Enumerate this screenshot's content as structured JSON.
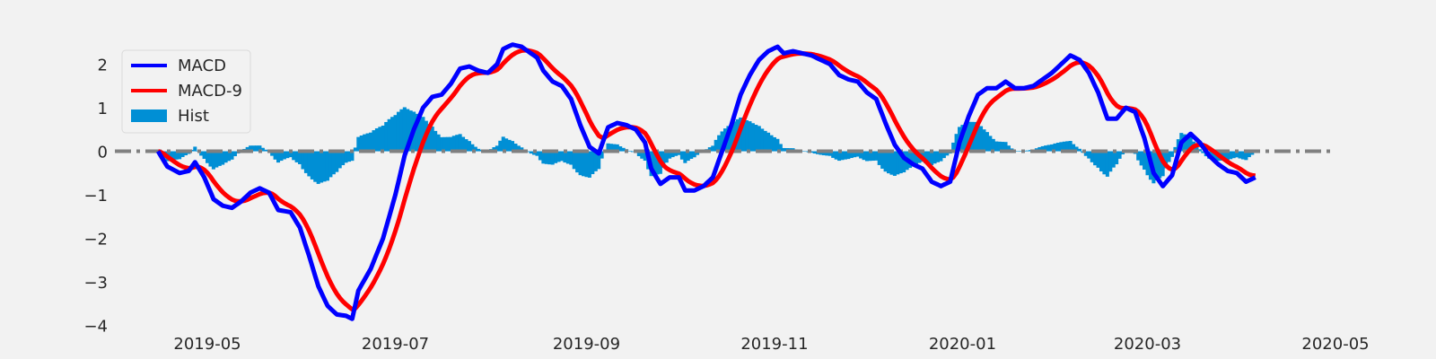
{
  "chart_data": {
    "type": "line",
    "title": "",
    "xlabel": "",
    "ylabel": "",
    "xlim": [
      "2019-04-01",
      "2020-05-01"
    ],
    "ylim": [
      -4.05,
      2.65
    ],
    "grid": false,
    "legend": {
      "placement": "upper-left",
      "entries": [
        "MACD",
        "MACD-9",
        "Hist"
      ]
    },
    "x_ticks": [
      "2019-05",
      "2019-07",
      "2019-09",
      "2019-11",
      "2020-01",
      "2020-03",
      "2020-05"
    ],
    "x_tick_dates": [
      "2019-05-01",
      "2019-07-01",
      "2019-09-01",
      "2019-11-01",
      "2020-01-01",
      "2020-03-01",
      "2020-05-01"
    ],
    "y_ticks": [
      2,
      1,
      0,
      -1,
      -2,
      -3,
      -4
    ],
    "y_tick_labels": [
      "2",
      "1",
      "0",
      "−1",
      "−2",
      "−3",
      "−4"
    ],
    "reference_line": {
      "y": 0,
      "style": "dash-dot",
      "color": "#808080"
    },
    "colors": {
      "macd": "#0000ff",
      "signal": "#ff0000",
      "hist": "#008fd5",
      "background": "#f2f2f2"
    },
    "series": [
      {
        "name": "MACD",
        "color": "#0000ff",
        "points": [
          [
            "2019-04-15",
            0.0
          ],
          [
            "2019-04-18",
            -0.35
          ],
          [
            "2019-04-22",
            -0.5
          ],
          [
            "2019-04-25",
            -0.45
          ],
          [
            "2019-04-27",
            -0.25
          ],
          [
            "2019-04-30",
            -0.6
          ],
          [
            "2019-05-03",
            -1.1
          ],
          [
            "2019-05-06",
            -1.25
          ],
          [
            "2019-05-09",
            -1.3
          ],
          [
            "2019-05-12",
            -1.15
          ],
          [
            "2019-05-15",
            -0.95
          ],
          [
            "2019-05-18",
            -0.85
          ],
          [
            "2019-05-21",
            -0.95
          ],
          [
            "2019-05-24",
            -1.35
          ],
          [
            "2019-05-28",
            -1.4
          ],
          [
            "2019-05-31",
            -1.75
          ],
          [
            "2019-06-03",
            -2.4
          ],
          [
            "2019-06-06",
            -3.1
          ],
          [
            "2019-06-09",
            -3.55
          ],
          [
            "2019-06-12",
            -3.75
          ],
          [
            "2019-06-15",
            -3.78
          ],
          [
            "2019-06-17",
            -3.85
          ],
          [
            "2019-06-19",
            -3.2
          ],
          [
            "2019-06-23",
            -2.7
          ],
          [
            "2019-06-27",
            -2.0
          ],
          [
            "2019-07-01",
            -1.0
          ],
          [
            "2019-07-04",
            -0.1
          ],
          [
            "2019-07-07",
            0.5
          ],
          [
            "2019-07-10",
            1.0
          ],
          [
            "2019-07-13",
            1.25
          ],
          [
            "2019-07-16",
            1.3
          ],
          [
            "2019-07-19",
            1.55
          ],
          [
            "2019-07-22",
            1.9
          ],
          [
            "2019-07-25",
            1.95
          ],
          [
            "2019-07-28",
            1.85
          ],
          [
            "2019-07-31",
            1.8
          ],
          [
            "2019-08-03",
            2.0
          ],
          [
            "2019-08-05",
            2.35
          ],
          [
            "2019-08-08",
            2.45
          ],
          [
            "2019-08-11",
            2.4
          ],
          [
            "2019-08-13",
            2.3
          ],
          [
            "2019-08-16",
            2.15
          ],
          [
            "2019-08-18",
            1.85
          ],
          [
            "2019-08-21",
            1.6
          ],
          [
            "2019-08-24",
            1.5
          ],
          [
            "2019-08-27",
            1.2
          ],
          [
            "2019-08-30",
            0.6
          ],
          [
            "2019-09-02",
            0.1
          ],
          [
            "2019-09-05",
            -0.05
          ],
          [
            "2019-09-08",
            0.55
          ],
          [
            "2019-09-11",
            0.65
          ],
          [
            "2019-09-14",
            0.6
          ],
          [
            "2019-09-17",
            0.5
          ],
          [
            "2019-09-20",
            0.2
          ],
          [
            "2019-09-22",
            -0.4
          ],
          [
            "2019-09-25",
            -0.75
          ],
          [
            "2019-09-28",
            -0.6
          ],
          [
            "2019-10-01",
            -0.6
          ],
          [
            "2019-10-03",
            -0.9
          ],
          [
            "2019-10-06",
            -0.9
          ],
          [
            "2019-10-09",
            -0.8
          ],
          [
            "2019-10-12",
            -0.6
          ],
          [
            "2019-10-15",
            0.0
          ],
          [
            "2019-10-18",
            0.6
          ],
          [
            "2019-10-21",
            1.3
          ],
          [
            "2019-10-24",
            1.75
          ],
          [
            "2019-10-27",
            2.1
          ],
          [
            "2019-10-30",
            2.3
          ],
          [
            "2019-11-02",
            2.4
          ],
          [
            "2019-11-04",
            2.25
          ],
          [
            "2019-11-07",
            2.3
          ],
          [
            "2019-11-10",
            2.25
          ],
          [
            "2019-11-13",
            2.2
          ],
          [
            "2019-11-16",
            2.1
          ],
          [
            "2019-11-19",
            2.0
          ],
          [
            "2019-11-22",
            1.75
          ],
          [
            "2019-11-25",
            1.65
          ],
          [
            "2019-11-28",
            1.6
          ],
          [
            "2019-12-01",
            1.35
          ],
          [
            "2019-12-04",
            1.2
          ],
          [
            "2019-12-07",
            0.65
          ],
          [
            "2019-12-10",
            0.15
          ],
          [
            "2019-12-13",
            -0.15
          ],
          [
            "2019-12-16",
            -0.3
          ],
          [
            "2019-12-19",
            -0.4
          ],
          [
            "2019-12-22",
            -0.7
          ],
          [
            "2019-12-25",
            -0.8
          ],
          [
            "2019-12-28",
            -0.7
          ],
          [
            "2019-12-31",
            0.2
          ],
          [
            "2020-01-03",
            0.8
          ],
          [
            "2020-01-06",
            1.3
          ],
          [
            "2020-01-09",
            1.45
          ],
          [
            "2020-01-12",
            1.45
          ],
          [
            "2020-01-15",
            1.6
          ],
          [
            "2020-01-18",
            1.45
          ],
          [
            "2020-01-21",
            1.45
          ],
          [
            "2020-01-24",
            1.5
          ],
          [
            "2020-01-27",
            1.65
          ],
          [
            "2020-01-30",
            1.8
          ],
          [
            "2020-02-02",
            2.0
          ],
          [
            "2020-02-05",
            2.2
          ],
          [
            "2020-02-08",
            2.1
          ],
          [
            "2020-02-11",
            1.8
          ],
          [
            "2020-02-14",
            1.35
          ],
          [
            "2020-02-17",
            0.75
          ],
          [
            "2020-02-20",
            0.75
          ],
          [
            "2020-02-23",
            1.0
          ],
          [
            "2020-02-26",
            0.9
          ],
          [
            "2020-02-29",
            0.3
          ],
          [
            "2020-03-03",
            -0.5
          ],
          [
            "2020-03-06",
            -0.8
          ],
          [
            "2020-03-09",
            -0.55
          ],
          [
            "2020-03-12",
            0.2
          ],
          [
            "2020-03-15",
            0.4
          ],
          [
            "2020-03-18",
            0.2
          ],
          [
            "2020-03-21",
            -0.1
          ],
          [
            "2020-03-24",
            -0.3
          ],
          [
            "2020-03-27",
            -0.45
          ],
          [
            "2020-03-30",
            -0.5
          ],
          [
            "2020-04-02",
            -0.7
          ],
          [
            "2020-04-05",
            -0.6
          ]
        ]
      },
      {
        "name": "MACD-9",
        "color": "#ff0000",
        "points": []
      }
    ],
    "hist": {
      "name": "Hist",
      "color": "#008fd5"
    }
  }
}
